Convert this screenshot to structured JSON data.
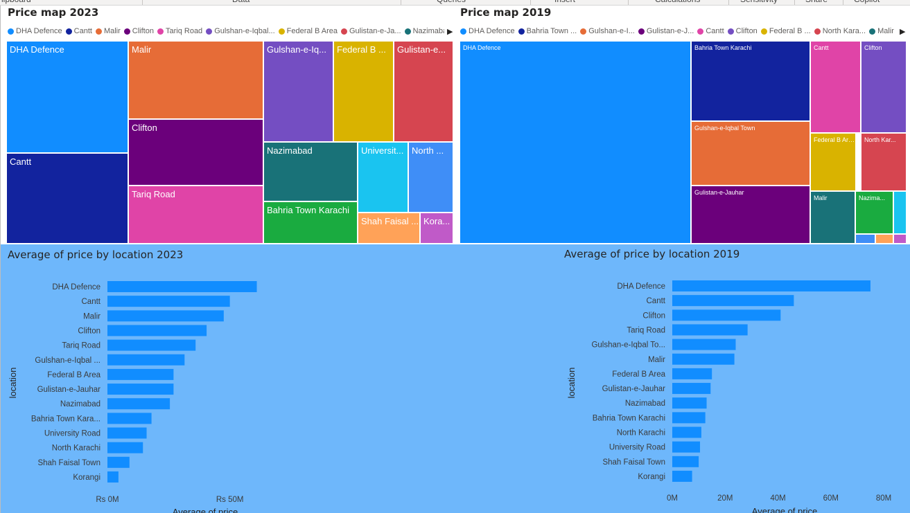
{
  "ribbon": {
    "groups": [
      "lipboard",
      "Data",
      "Queries",
      "Insert",
      "Calculations",
      "Sensitivity",
      "Share",
      "Copilot"
    ]
  },
  "chart_data": [
    {
      "type": "treemap",
      "title": "Price map 2023",
      "legend": [
        "DHA Defence",
        "Cantt",
        "Malir",
        "Clifton",
        "Tariq Road",
        "Gulshan-e-Iqbal...",
        "Federal B Area",
        "Gulistan-e-Ja...",
        "Nazimabad"
      ],
      "tiles": [
        {
          "name": "DHA Defence",
          "label": "DHA Defence",
          "color": "#118dff"
        },
        {
          "name": "Cantt",
          "label": "Cantt",
          "color": "#12239e"
        },
        {
          "name": "Malir",
          "label": "Malir",
          "color": "#e66c37"
        },
        {
          "name": "Clifton",
          "label": "Clifton",
          "color": "#6b007b"
        },
        {
          "name": "Tariq Road",
          "label": "Tariq Road",
          "color": "#e044a7"
        },
        {
          "name": "Gulshan-e-Iqbal Town",
          "label": "Gulshan-e-Iq...",
          "color": "#744ec2"
        },
        {
          "name": "Federal B Area",
          "label": "Federal B ...",
          "color": "#d9b300"
        },
        {
          "name": "Gulistan-e-Jauhar",
          "label": "Gulistan-e...",
          "color": "#d64550"
        },
        {
          "name": "Nazimabad",
          "label": "Nazimabad",
          "color": "#197278"
        },
        {
          "name": "University Road",
          "label": "Universit...",
          "color": "#1ac4f0"
        },
        {
          "name": "North Karachi",
          "label": "North ...",
          "color": "#3f8ef7"
        },
        {
          "name": "Bahria Town Karachi",
          "label": "Bahria Town Karachi",
          "color": "#1aab40"
        },
        {
          "name": "Shah Faisal Town",
          "label": "Shah Faisal ...",
          "color": "#ffa258"
        },
        {
          "name": "Korangi",
          "label": "Kora...",
          "color": "#c05ac8"
        }
      ]
    },
    {
      "type": "treemap",
      "title": "Price map 2019",
      "legend": [
        "DHA Defence",
        "Bahria Town ...",
        "Gulshan-e-I...",
        "Gulistan-e-J...",
        "Cantt",
        "Clifton",
        "Federal B ...",
        "North Kara...",
        "Malir"
      ],
      "tiles": [
        {
          "name": "DHA Defence",
          "label": "DHA Defence",
          "color": "#118dff"
        },
        {
          "name": "Bahria Town Karachi",
          "label": "Bahria Town Karachi",
          "color": "#12239e"
        },
        {
          "name": "Gulshan-e-Iqbal Town",
          "label": "Gulshan-e-Iqbal Town",
          "color": "#e66c37"
        },
        {
          "name": "Gulistan-e-Jauhar",
          "label": "Gulistan-e-Jauhar",
          "color": "#6b007b"
        },
        {
          "name": "Cantt",
          "label": "Cantt",
          "color": "#e044a7"
        },
        {
          "name": "Clifton",
          "label": "Clifton",
          "color": "#744ec2"
        },
        {
          "name": "Federal B Area",
          "label": "Federal B Area",
          "color": "#d9b300"
        },
        {
          "name": "North Karachi",
          "label": "North Kar...",
          "color": "#d64550"
        },
        {
          "name": "Malir",
          "label": "Malir",
          "color": "#197278"
        },
        {
          "name": "Nazimabad",
          "label": "Nazima...",
          "color": "#1aab40"
        },
        {
          "name": "University Road",
          "label": "",
          "color": "#1ac4f0"
        },
        {
          "name": "small-1",
          "label": "",
          "color": "#3f8ef7"
        },
        {
          "name": "small-2",
          "label": "",
          "color": "#ffa258"
        },
        {
          "name": "small-3",
          "label": "",
          "color": "#c05ac8"
        }
      ]
    },
    {
      "type": "bar",
      "orientation": "horizontal",
      "title": "Average of price by location 2023",
      "xlabel": "Average of price",
      "ylabel": "location",
      "categories": [
        "DHA Defence",
        "Cantt",
        "Malir",
        "Clifton",
        "Tariq Road",
        "Gulshan-e-Iqbal ...",
        "Federal B Area",
        "Gulistan-e-Jauhar",
        "Nazimabad",
        "Bahria Town Kara...",
        "University Road",
        "North Karachi",
        "Shah Faisal Town",
        "Korangi"
      ],
      "values": [
        61,
        50,
        47.5,
        40.5,
        36,
        31.5,
        27,
        27,
        25.5,
        18,
        16,
        14.5,
        9,
        4.5
      ],
      "xlim": [
        0,
        60
      ],
      "ticks": [
        0,
        50
      ],
      "tick_labels": [
        "Rs 0M",
        "Rs 50M"
      ],
      "color": "#118dff"
    },
    {
      "type": "bar",
      "orientation": "horizontal",
      "title": "Average of price by location 2019",
      "xlabel": "Average of price",
      "ylabel": "location",
      "categories": [
        "DHA Defence",
        "Cantt",
        "Clifton",
        "Tariq Road",
        "Gulshan-e-Iqbal To...",
        "Malir",
        "Federal B Area",
        "Gulistan-e-Jauhar",
        "Nazimabad",
        "Bahria Town Karachi",
        "North Karachi",
        "University Road",
        "Shah Faisal Town",
        "Korangi"
      ],
      "values": [
        75,
        46,
        41,
        28.5,
        24,
        23.5,
        15,
        14.5,
        13,
        12.5,
        11,
        10.5,
        10,
        7.5
      ],
      "xlim": [
        0,
        80
      ],
      "ticks": [
        0,
        20,
        40,
        60,
        80
      ],
      "tick_labels": [
        "0M",
        "20M",
        "40M",
        "60M",
        "80M"
      ],
      "color": "#118dff"
    }
  ]
}
